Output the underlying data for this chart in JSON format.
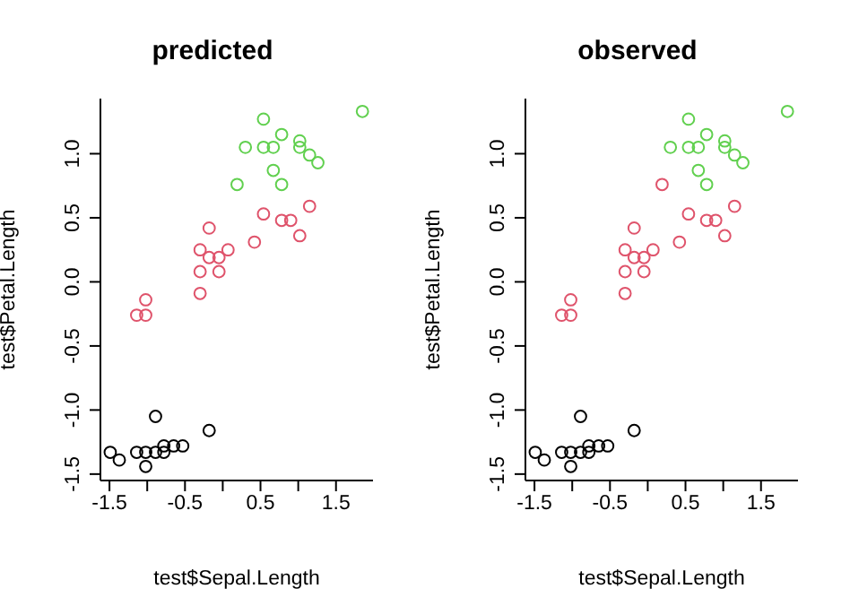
{
  "chart_data": [
    {
      "type": "scatter",
      "title": "predicted",
      "xlabel": "test$Sepal.Length",
      "ylabel": "test$Petal.Length",
      "xlim": [
        -1.62,
        1.99
      ],
      "ylim": [
        -1.55,
        1.43
      ],
      "xticks": [
        -1.5,
        {
          "value": -1,
          "label": null
        },
        -0.5,
        {
          "value": 0,
          "label": null
        },
        0.5,
        {
          "value": 1,
          "label": null
        },
        1.5
      ],
      "yticks": [
        -1.5,
        {
          "value": -1,
          "label": "-1.0"
        },
        -0.5,
        {
          "value": 0,
          "label": "0.0"
        },
        0.5,
        {
          "value": 1,
          "label": "1.0"
        }
      ],
      "marker": "circle",
      "series": [
        {
          "color": "#000000",
          "x": [
            -1.49,
            -1.37,
            -1.14,
            -1.02,
            -1.02,
            -0.89,
            -0.89,
            -0.78,
            -0.78,
            -0.65,
            -0.53,
            -0.18
          ],
          "values": [
            -1.33,
            -1.39,
            -1.33,
            -1.33,
            -1.44,
            -1.05,
            -1.33,
            -1.28,
            -1.33,
            -1.28,
            -1.28,
            -1.16
          ]
        },
        {
          "color": "#df536b",
          "x": [
            -1.14,
            -1.02,
            -1.02,
            -0.3,
            -0.3,
            -0.3,
            -0.18,
            -0.18,
            -0.05,
            -0.05,
            0.07,
            0.42,
            0.54,
            0.78,
            0.9,
            1.02,
            1.15
          ],
          "values": [
            -0.26,
            -0.14,
            -0.26,
            -0.09,
            0.08,
            0.25,
            0.42,
            0.19,
            0.19,
            0.08,
            0.25,
            0.31,
            0.53,
            0.48,
            0.48,
            0.36,
            0.59
          ]
        },
        {
          "color": "#61d04f",
          "x": [
            0.19,
            0.3,
            0.54,
            0.54,
            0.67,
            0.67,
            0.78,
            0.78,
            1.02,
            1.02,
            1.15,
            1.26,
            1.85
          ],
          "values": [
            0.76,
            1.05,
            1.27,
            1.05,
            1.05,
            0.87,
            1.15,
            0.76,
            1.1,
            1.05,
            0.99,
            0.93,
            1.33
          ]
        }
      ]
    },
    {
      "type": "scatter",
      "title": "observed",
      "xlabel": "test$Sepal.Length",
      "ylabel": "test$Petal.Length",
      "xlim": [
        -1.62,
        1.99
      ],
      "ylim": [
        -1.55,
        1.43
      ],
      "xticks": [
        -1.5,
        {
          "value": -1,
          "label": null
        },
        -0.5,
        {
          "value": 0,
          "label": null
        },
        0.5,
        {
          "value": 1,
          "label": null
        },
        1.5
      ],
      "yticks": [
        -1.5,
        {
          "value": -1,
          "label": "-1.0"
        },
        -0.5,
        {
          "value": 0,
          "label": "0.0"
        },
        0.5,
        {
          "value": 1,
          "label": "1.0"
        }
      ],
      "marker": "circle",
      "series": [
        {
          "color": "#000000",
          "x": [
            -1.49,
            -1.37,
            -1.14,
            -1.02,
            -1.02,
            -0.89,
            -0.89,
            -0.78,
            -0.78,
            -0.65,
            -0.53,
            -0.18
          ],
          "values": [
            -1.33,
            -1.39,
            -1.33,
            -1.33,
            -1.44,
            -1.05,
            -1.33,
            -1.28,
            -1.33,
            -1.28,
            -1.28,
            -1.16
          ]
        },
        {
          "color": "#df536b",
          "x": [
            -1.14,
            -1.02,
            -1.02,
            -0.3,
            -0.3,
            -0.3,
            -0.18,
            -0.18,
            -0.05,
            -0.05,
            0.07,
            0.42,
            0.54,
            0.78,
            0.9,
            1.02,
            1.15,
            0.19
          ],
          "values": [
            -0.26,
            -0.14,
            -0.26,
            -0.09,
            0.08,
            0.25,
            0.42,
            0.19,
            0.19,
            0.08,
            0.25,
            0.31,
            0.53,
            0.48,
            0.48,
            0.36,
            0.59,
            0.76
          ]
        },
        {
          "color": "#61d04f",
          "x": [
            0.3,
            0.54,
            0.54,
            0.67,
            0.67,
            0.78,
            0.78,
            1.02,
            1.02,
            1.15,
            1.26,
            1.85
          ],
          "values": [
            1.05,
            1.27,
            1.05,
            1.05,
            0.87,
            1.15,
            0.76,
            1.1,
            1.05,
            0.99,
            0.93,
            1.33
          ]
        }
      ]
    }
  ]
}
